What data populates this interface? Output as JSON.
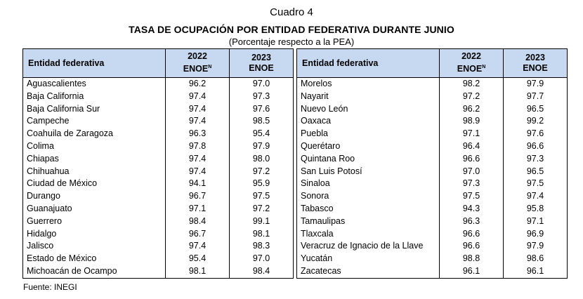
{
  "header": {
    "cuadro": "Cuadro 4",
    "title": "TASA DE OCUPACIÓN POR ENTIDAD FEDERATIVA DURANTE JUNIO",
    "subtitle": "(Porcentaje respecto a la PEA)"
  },
  "columns": {
    "entidad": "Entidad federativa",
    "y2022_year": "2022",
    "y2022_label": "ENOE",
    "y2022_sup": "N",
    "y2023_year": "2023",
    "y2023_label": "ENOE"
  },
  "left_rows": [
    {
      "name": "Aguascalientes",
      "v2022": "96.2",
      "v2023": "97.0"
    },
    {
      "name": "Baja California",
      "v2022": "97.4",
      "v2023": "97.3"
    },
    {
      "name": "Baja California Sur",
      "v2022": "97.4",
      "v2023": "97.6"
    },
    {
      "name": "Campeche",
      "v2022": "97.4",
      "v2023": "98.5"
    },
    {
      "name": "Coahuila de Zaragoza",
      "v2022": "96.3",
      "v2023": "95.4"
    },
    {
      "name": "Colima",
      "v2022": "97.8",
      "v2023": "97.9"
    },
    {
      "name": "Chiapas",
      "v2022": "97.4",
      "v2023": "98.0"
    },
    {
      "name": "Chihuahua",
      "v2022": "97.4",
      "v2023": "97.2"
    },
    {
      "name": "Ciudad de México",
      "v2022": "94.1",
      "v2023": "95.9"
    },
    {
      "name": "Durango",
      "v2022": "96.7",
      "v2023": "97.5"
    },
    {
      "name": "Guanajuato",
      "v2022": "97.1",
      "v2023": "97.2"
    },
    {
      "name": "Guerrero",
      "v2022": "98.4",
      "v2023": "99.1"
    },
    {
      "name": "Hidalgo",
      "v2022": "96.7",
      "v2023": "98.1"
    },
    {
      "name": "Jalisco",
      "v2022": "97.4",
      "v2023": "98.3"
    },
    {
      "name": "Estado de México",
      "v2022": "95.4",
      "v2023": "97.0"
    },
    {
      "name": "Michoacán de Ocampo",
      "v2022": "98.1",
      "v2023": "98.4"
    }
  ],
  "right_rows": [
    {
      "name": "Morelos",
      "v2022": "98.2",
      "v2023": "97.9"
    },
    {
      "name": "Nayarit",
      "v2022": "97.2",
      "v2023": "97.7"
    },
    {
      "name": "Nuevo León",
      "v2022": "96.2",
      "v2023": "96.5"
    },
    {
      "name": "Oaxaca",
      "v2022": "98.9",
      "v2023": "99.2"
    },
    {
      "name": "Puebla",
      "v2022": "97.1",
      "v2023": "97.6"
    },
    {
      "name": "Querétaro",
      "v2022": "96.4",
      "v2023": "96.6"
    },
    {
      "name": "Quintana Roo",
      "v2022": "96.6",
      "v2023": "97.3"
    },
    {
      "name": "San Luis Potosí",
      "v2022": "97.0",
      "v2023": "96.5"
    },
    {
      "name": "Sinaloa",
      "v2022": "97.3",
      "v2023": "97.5"
    },
    {
      "name": "Sonora",
      "v2022": "97.5",
      "v2023": "97.4"
    },
    {
      "name": "Tabasco",
      "v2022": "94.3",
      "v2023": "95.8"
    },
    {
      "name": "Tamaulipas",
      "v2022": "96.3",
      "v2023": "97.1"
    },
    {
      "name": "Tlaxcala",
      "v2022": "96.6",
      "v2023": "96.9"
    },
    {
      "name": "Veracruz de Ignacio de la Llave",
      "v2022": "96.6",
      "v2023": "97.9"
    },
    {
      "name": "Yucatán",
      "v2022": "98.8",
      "v2023": "98.6"
    },
    {
      "name": "Zacatecas",
      "v2022": "96.1",
      "v2023": "96.1"
    }
  ],
  "footer": {
    "source": "Fuente: INEGI"
  }
}
